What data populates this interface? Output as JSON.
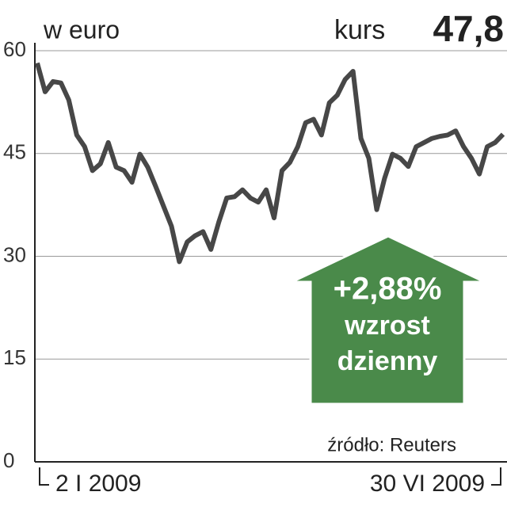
{
  "chart_data": {
    "type": "line",
    "unit_label": "w euro",
    "price_caption": "kurs",
    "price_label": "47,8",
    "change_label": "+2,88%",
    "change_text": [
      "wzrost",
      "dzienny"
    ],
    "source": "źródło: Reuters",
    "categories": [
      "2 I 2009",
      null,
      null,
      null,
      null,
      null,
      null,
      null,
      null,
      null,
      null,
      null,
      null,
      null,
      null,
      null,
      null,
      null,
      null,
      null,
      null,
      null,
      null,
      null,
      null,
      null,
      null,
      null,
      null,
      null,
      null,
      null,
      null,
      null,
      null,
      null,
      null,
      null,
      null,
      null,
      null,
      null,
      null,
      null,
      null,
      null,
      null,
      null,
      null,
      null,
      null,
      null,
      null,
      null,
      null,
      null,
      null,
      null,
      null,
      "30 VI 2009"
    ],
    "values": [
      58.2,
      54,
      55.5,
      55.3,
      52.8,
      47.7,
      46,
      42.5,
      43.5,
      46.6,
      43,
      42.5,
      40.8,
      44.9,
      43,
      40.2,
      37.3,
      34.4,
      29.2,
      32.1,
      33,
      33.6,
      31,
      35,
      38.5,
      38.7,
      39.7,
      38.5,
      37.9,
      39.7,
      35.6,
      42.5,
      43.7,
      46,
      49.5,
      50,
      47.7,
      52.4,
      53.5,
      55.8,
      57,
      47.2,
      44.3,
      36.8,
      41.4,
      44.9,
      44.3,
      43.1,
      46,
      46.6,
      47.2,
      47.5,
      47.7,
      48.3,
      46,
      44.3,
      42,
      46,
      46.6,
      47.8
    ],
    "color": "#474747",
    "ylim": [
      0,
      60
    ],
    "yticks": [
      0,
      15,
      30,
      45,
      60
    ],
    "grid": true
  }
}
